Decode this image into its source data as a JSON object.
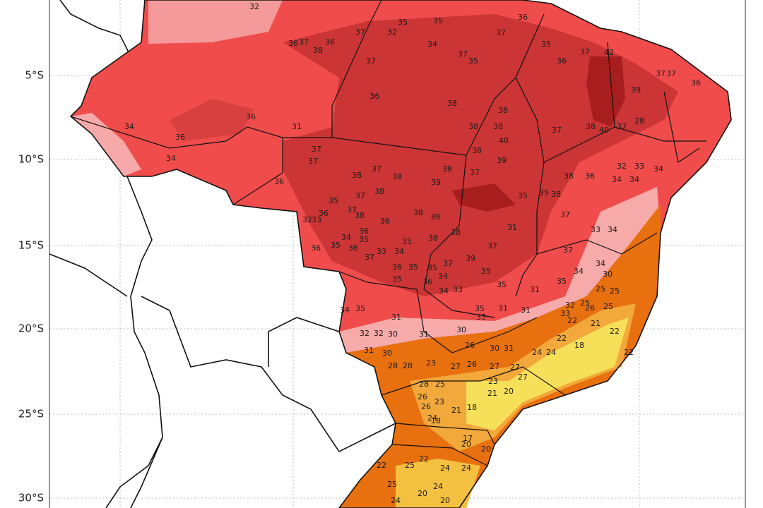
{
  "map": {
    "lat_labels": [
      "5°S",
      "10°S",
      "15°S",
      "20°S",
      "25°S",
      "30°S"
    ],
    "temperature_labels": [
      32,
      35,
      35,
      32,
      37,
      36,
      37,
      38,
      36,
      34,
      37,
      35,
      37,
      36,
      35,
      36,
      37,
      42,
      39,
      37,
      37,
      36,
      37,
      36,
      38,
      38,
      38,
      38,
      40,
      38,
      39,
      37,
      38,
      40,
      37,
      28,
      31,
      36,
      36,
      34,
      34,
      36,
      37,
      37,
      38,
      37,
      38,
      38,
      37,
      39,
      38,
      39,
      35,
      37,
      38,
      36,
      37,
      38,
      32,
      33,
      34,
      35,
      36,
      36,
      36,
      35,
      36,
      37,
      33,
      34,
      35,
      38,
      38,
      31,
      37,
      39,
      35,
      37,
      35,
      34,
      36,
      35,
      35,
      34,
      33,
      36,
      35,
      31,
      35,
      38,
      35,
      35,
      37,
      38,
      36,
      32,
      33,
      34,
      34,
      34,
      33,
      34,
      37,
      34,
      34,
      30,
      32,
      33,
      25,
      25,
      25,
      26,
      25,
      35,
      34,
      31,
      31,
      30,
      33,
      35,
      31,
      31,
      32,
      32,
      30,
      31,
      30,
      28,
      28,
      23,
      28,
      25,
      26,
      23,
      26,
      24,
      21,
      18,
      18,
      23,
      21,
      20,
      27,
      27,
      27,
      26,
      27,
      26,
      30,
      31,
      24,
      24,
      22,
      18,
      22,
      21,
      22,
      22,
      20,
      20,
      17,
      25,
      25,
      20,
      24,
      24,
      20,
      24,
      24,
      22,
      22
    ]
  }
}
